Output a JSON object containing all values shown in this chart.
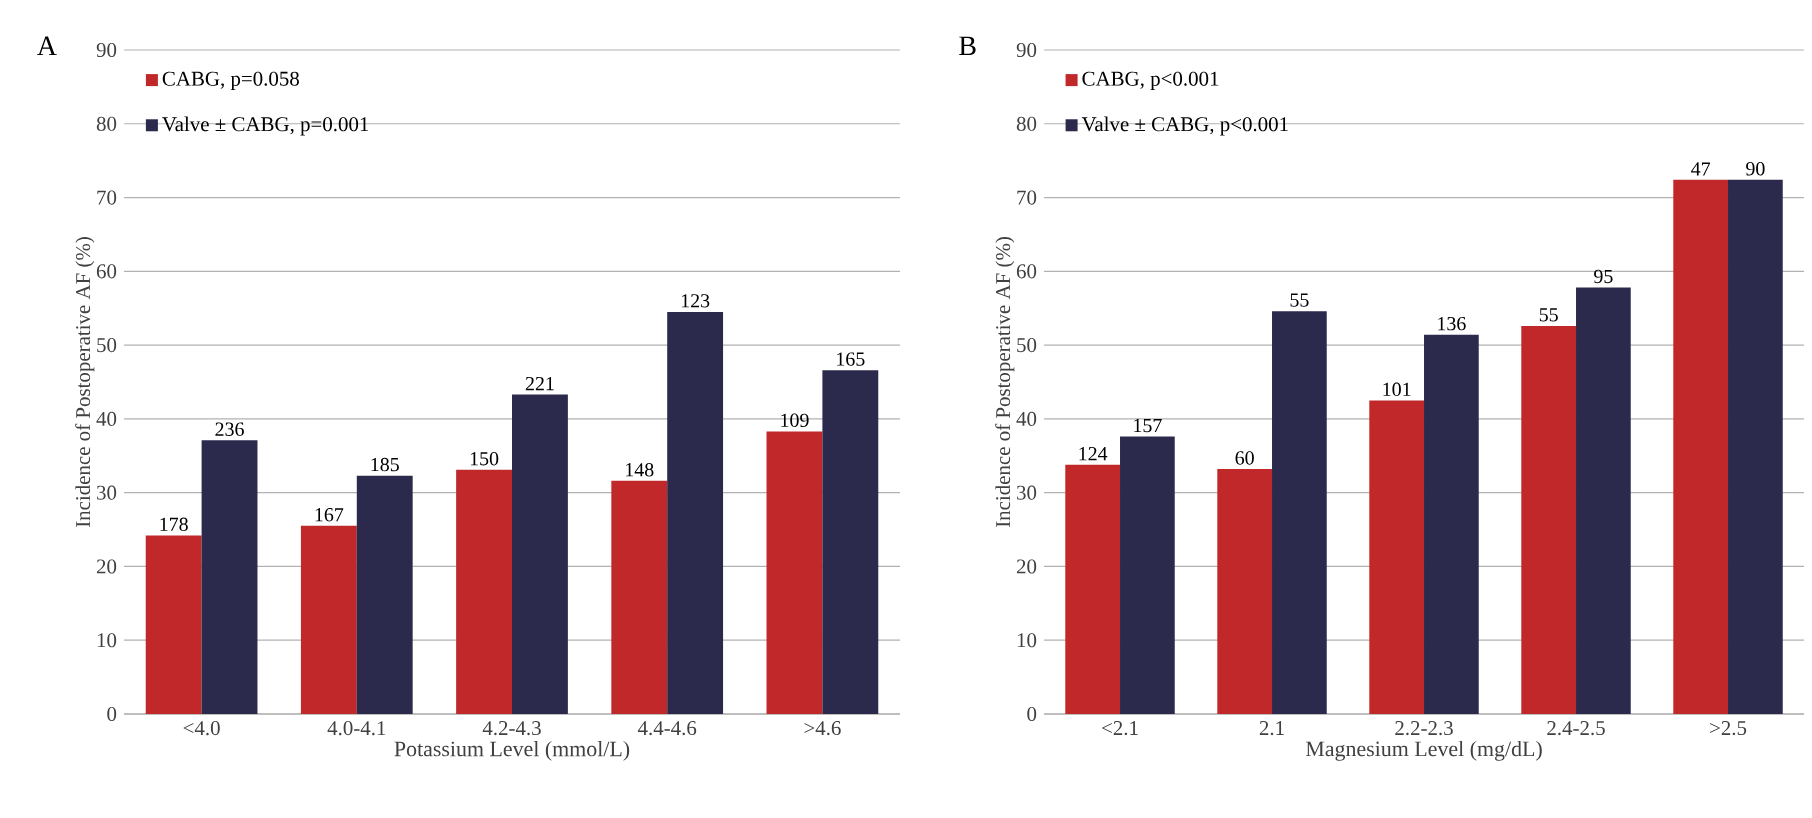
{
  "chart_data": [
    {
      "type": "bar",
      "title": "A",
      "xlabel": "Potassium Level (mmol/L)",
      "ylabel": "Incidence of Postoperative AF (%)",
      "categories": [
        "<4.0",
        "4.0-4.1",
        "4.2-4.3",
        "4.4-4.6",
        ">4.6"
      ],
      "series": [
        {
          "name": "CABG, p=0.058",
          "color": "#c0282a",
          "values": [
            24.2,
            25.5,
            33.1,
            31.6,
            38.3
          ]
        },
        {
          "name": "Valve ± CABG, p=0.001",
          "color": "#2b2a4c",
          "values": [
            37.1,
            32.3,
            43.3,
            54.5,
            46.6
          ]
        }
      ],
      "ylim": [
        0,
        90
      ],
      "yticks": [
        0,
        10,
        20,
        30,
        40,
        50,
        60,
        70,
        80,
        90
      ],
      "grid": "y",
      "legend": "top left",
      "annotations": [
        {
          "text": "178",
          "x": "<4.0",
          "y": 24.2
        },
        {
          "text": "236",
          "x": "<4.0",
          "y": 37.1
        },
        {
          "text": "167",
          "x": "4.0-4.1",
          "y": 25.5
        },
        {
          "text": "185",
          "x": "4.0-4.1",
          "y": 32.3
        },
        {
          "text": "150",
          "x": "4.2-4.3",
          "y": 33.1
        },
        {
          "text": "221",
          "x": "4.2-4.3",
          "y": 43.3
        },
        {
          "text": "148",
          "x": "4.4-4.6",
          "y": 31.6
        },
        {
          "text": "123",
          "x": "4.4-4.6",
          "y": 54.5
        },
        {
          "text": "109",
          "x": ">4.6",
          "y": 38.3
        },
        {
          "text": "165",
          "x": ">4.6",
          "y": 46.6
        }
      ]
    },
    {
      "type": "bar",
      "title": "B",
      "xlabel": "Magnesium Level (mg/dL)",
      "ylabel": "Incidence of Postoperative AF (%)",
      "categories": [
        "<2.1",
        "2.1",
        "2.2-2.3",
        "2.4-2.5",
        ">2.5"
      ],
      "series": [
        {
          "name": "CABG, p<0.001",
          "color": "#c0282a",
          "values": [
            33.8,
            33.2,
            42.5,
            52.6,
            72.4
          ]
        },
        {
          "name": "Valve ± CABG, p<0.001",
          "color": "#2b2a4c",
          "values": [
            37.6,
            54.6,
            51.4,
            57.8,
            72.4
          ]
        }
      ],
      "ylim": [
        0,
        90
      ],
      "yticks": [
        0,
        10,
        20,
        30,
        40,
        50,
        60,
        70,
        80,
        90
      ],
      "grid": "y",
      "legend": "top left",
      "annotations": [
        {
          "text": "124",
          "x": "<2.1",
          "y": 33.8
        },
        {
          "text": "157",
          "x": "<2.1",
          "y": 37.6
        },
        {
          "text": "60",
          "x": "2.1",
          "y": 33.2
        },
        {
          "text": "55",
          "x": "2.1",
          "y": 54.6
        },
        {
          "text": "101",
          "x": "2.2-2.3",
          "y": 42.5
        },
        {
          "text": "136",
          "x": "2.2-2.3",
          "y": 51.4
        },
        {
          "text": "55",
          "x": "2.4-2.5",
          "y": 52.6
        },
        {
          "text": "95",
          "x": "2.4-2.5",
          "y": 57.8
        },
        {
          "text": "47",
          "x": ">2.5",
          "y": 72.4
        },
        {
          "text": "90",
          "x": ">2.5",
          "y": 72.4
        }
      ]
    }
  ]
}
